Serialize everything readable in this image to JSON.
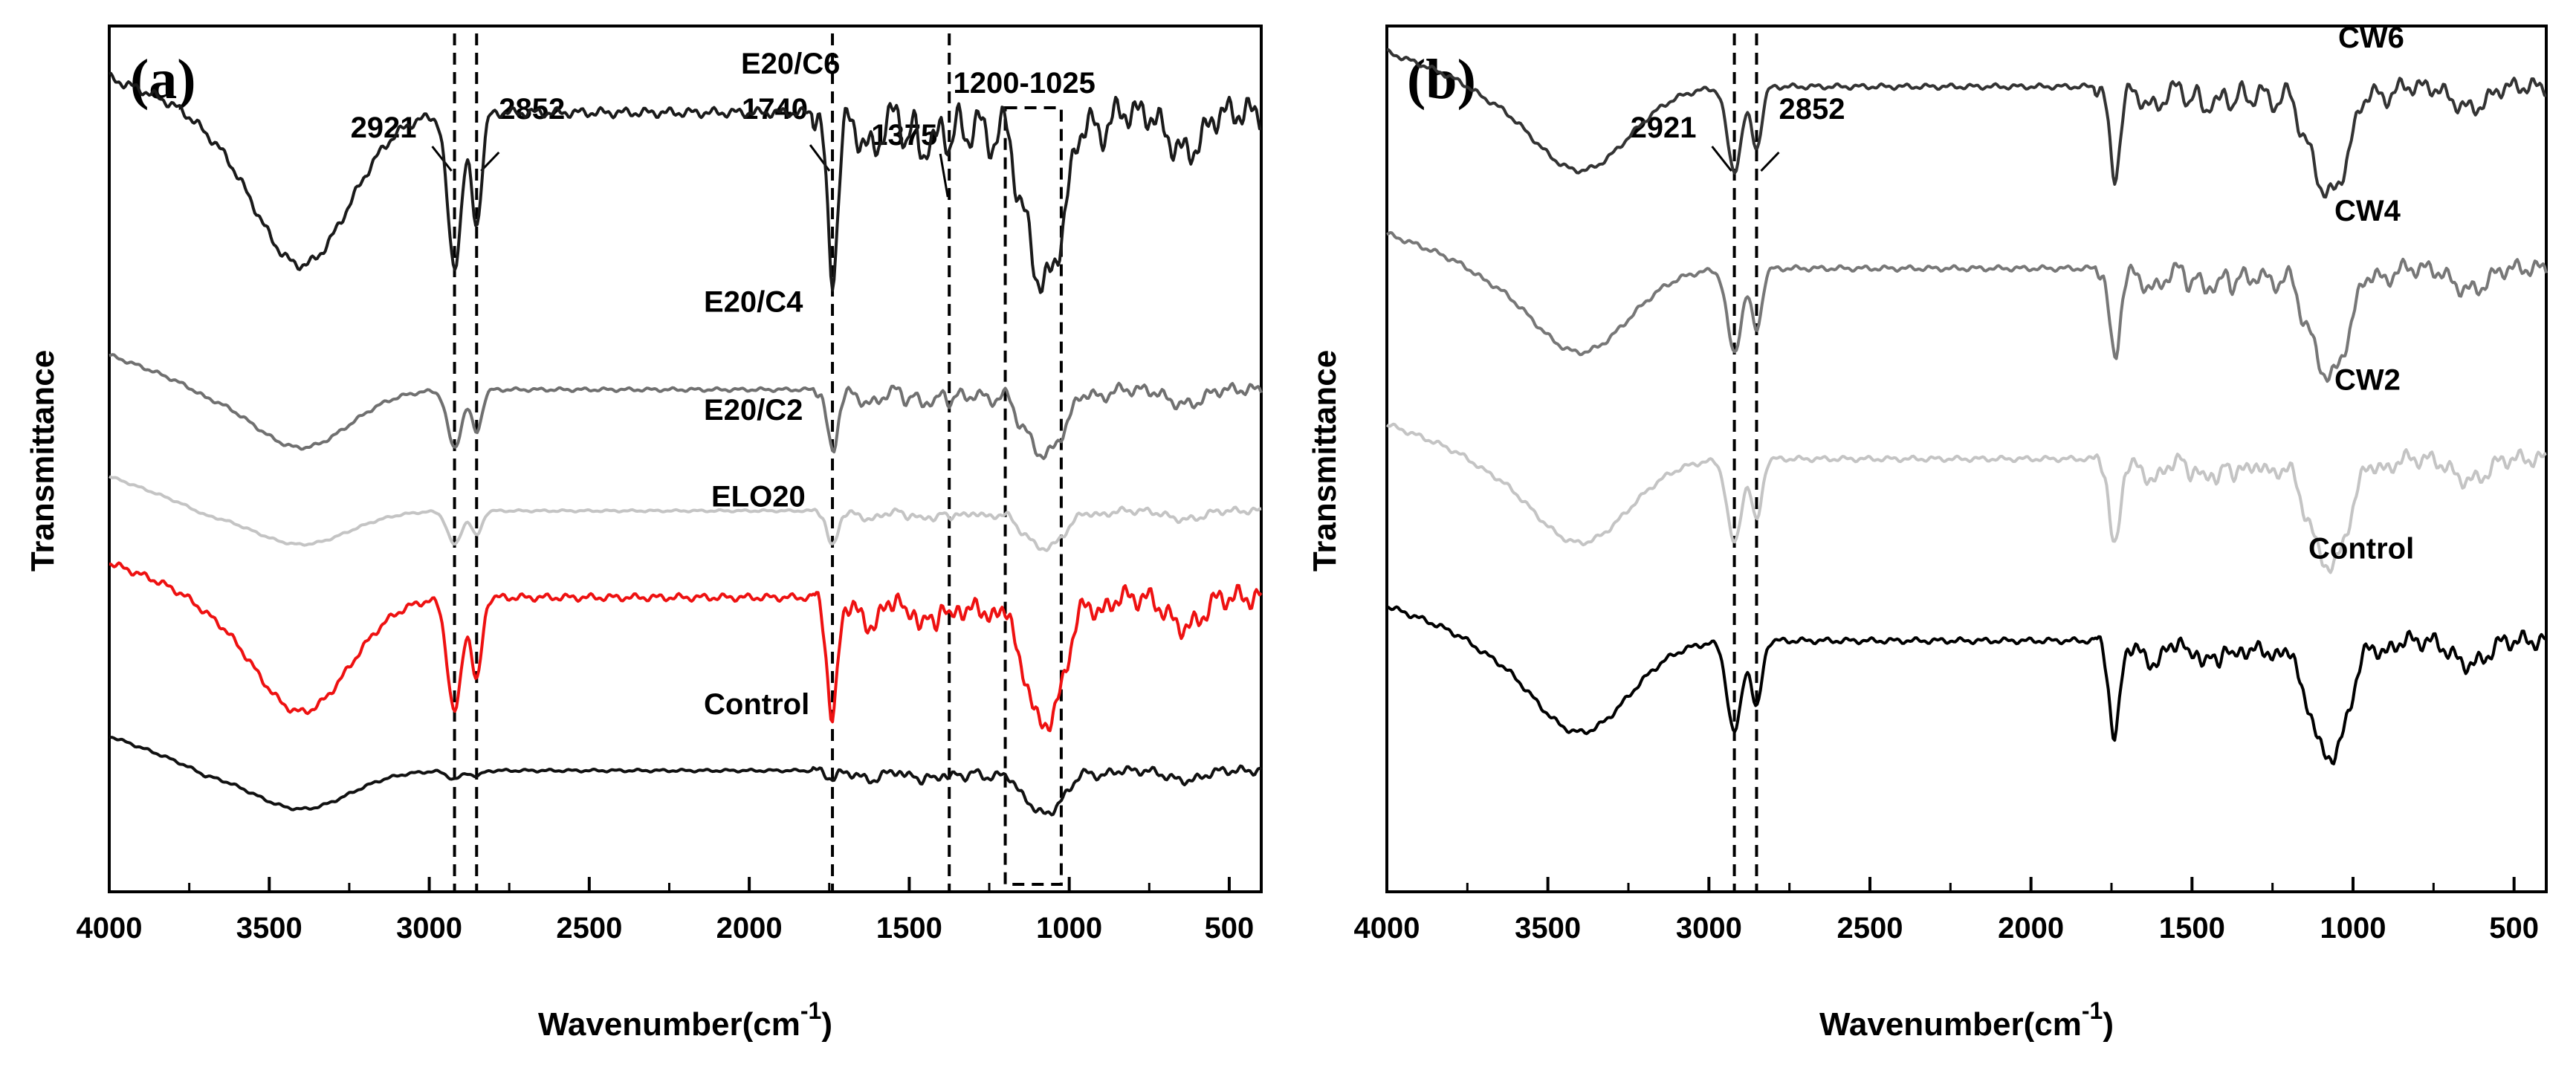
{
  "chart_data": [
    {
      "type": "line",
      "panel_label": "(a)",
      "xlabel": "Wavenumber(cm",
      "xlabel_sup": "-1",
      "xlabel_close": ")",
      "ylabel": "Transmittance",
      "xlim": [
        4000,
        400
      ],
      "x_ticks": [
        4000,
        3500,
        3000,
        2500,
        2000,
        1500,
        1000,
        500
      ],
      "x_tick_labels": [
        "4000",
        "3500",
        "3000",
        "2500",
        "2000",
        "1500",
        "1000",
        "500"
      ],
      "y_ticks_shown": false,
      "series": [
        {
          "name": "E20/C6",
          "color": "#1a1a1a",
          "baseline": 0.9,
          "depth": 1.0,
          "offset": 4
        },
        {
          "name": "E20/C4",
          "color": "#707070",
          "baseline": 0.58,
          "depth": 0.38,
          "offset": 0
        },
        {
          "name": "E20/C2",
          "color": "#c4c4c4",
          "baseline": 0.44,
          "depth": 0.22,
          "offset": 0
        },
        {
          "name": "ELO20",
          "color": "#ee1111",
          "baseline": 0.34,
          "depth": 0.75,
          "offset": 4
        },
        {
          "name": "Control",
          "color": "#111111",
          "baseline": 0.14,
          "depth": 0.28,
          "offset": 0
        }
      ],
      "reference_lines": [
        {
          "x": 2921,
          "label": "2921"
        },
        {
          "x": 2852,
          "label": "2852"
        },
        {
          "x": 1740,
          "label": "1740"
        },
        {
          "x": 1375,
          "label": "1375"
        }
      ],
      "region": {
        "from": 1200,
        "to": 1025,
        "label": "1200-1025"
      }
    },
    {
      "type": "line",
      "panel_label": "(b)",
      "xlabel": "Wavenumber(cm",
      "xlabel_sup": "-1",
      "xlabel_close": ")",
      "ylabel": "Transmittance",
      "xlim": [
        4000,
        400
      ],
      "x_ticks": [
        4000,
        3500,
        3000,
        2500,
        2000,
        1500,
        1000,
        500
      ],
      "x_tick_labels": [
        "4000",
        "3500",
        "3000",
        "2500",
        "2000",
        "1500",
        "1000",
        "500"
      ],
      "y_ticks_shown": false,
      "series": [
        {
          "name": "CW6",
          "color": "#333333",
          "baseline": 0.93,
          "depth": 0.55,
          "offset": 0
        },
        {
          "name": "CW4",
          "color": "#777777",
          "baseline": 0.72,
          "depth": 0.55,
          "offset": 0
        },
        {
          "name": "CW2",
          "color": "#c4c4c4",
          "baseline": 0.5,
          "depth": 0.55,
          "offset": 0
        },
        {
          "name": "Control",
          "color": "#000000",
          "baseline": 0.29,
          "depth": 0.6,
          "offset": 0
        }
      ],
      "reference_lines": [
        {
          "x": 2921,
          "label": "2921"
        },
        {
          "x": 2852,
          "label": "2852"
        }
      ]
    }
  ]
}
